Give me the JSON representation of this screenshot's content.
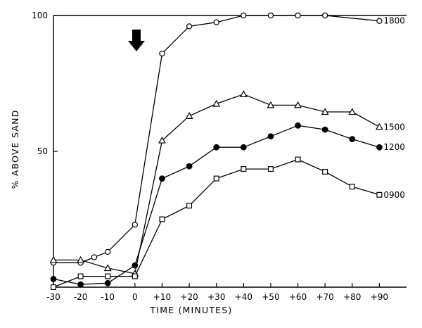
{
  "chart_data": {
    "type": "line",
    "xlabel": "TIME (MINUTES)",
    "ylabel": "% ABOVE SAND",
    "xlim": [
      -30,
      100
    ],
    "ylim": [
      0,
      100
    ],
    "x_ticks": [
      -30,
      -20,
      -10,
      0,
      10,
      20,
      30,
      40,
      50,
      60,
      70,
      80,
      90
    ],
    "x_tick_labels": [
      "-30",
      "-20",
      "-10",
      "0",
      "+10",
      "+20",
      "+30",
      "+40",
      "+50",
      "+60",
      "+70",
      "+80",
      "+90"
    ],
    "y_ticks": [
      50,
      100
    ],
    "y_tick_labels": [
      "50",
      "100"
    ],
    "grid": false,
    "annotation": {
      "type": "down-arrow",
      "x": 0
    },
    "series": [
      {
        "name": "1800",
        "marker": "open-circle",
        "points": [
          [
            -30,
            9
          ],
          [
            -20,
            9
          ],
          [
            -15,
            11
          ],
          [
            -10,
            13
          ],
          [
            0,
            23
          ],
          [
            10,
            86
          ],
          [
            20,
            96
          ],
          [
            30,
            97.5
          ],
          [
            40,
            100
          ],
          [
            50,
            100
          ],
          [
            60,
            100
          ],
          [
            70,
            100
          ],
          [
            90,
            98
          ]
        ]
      },
      {
        "name": "1500",
        "marker": "open-triangle",
        "points": [
          [
            -30,
            10
          ],
          [
            -20,
            10
          ],
          [
            -10,
            7
          ],
          [
            0,
            5
          ],
          [
            10,
            54
          ],
          [
            20,
            63
          ],
          [
            30,
            67.5
          ],
          [
            40,
            71
          ],
          [
            50,
            67
          ],
          [
            60,
            67
          ],
          [
            70,
            64.5
          ],
          [
            80,
            64.5
          ],
          [
            90,
            59
          ]
        ]
      },
      {
        "name": "1200",
        "marker": "filled-circle",
        "points": [
          [
            -30,
            3
          ],
          [
            -20,
            1
          ],
          [
            -10,
            1.5
          ],
          [
            0,
            8
          ],
          [
            10,
            40
          ],
          [
            20,
            44.5
          ],
          [
            30,
            51.5
          ],
          [
            40,
            51.5
          ],
          [
            50,
            55.5
          ],
          [
            60,
            59.5
          ],
          [
            70,
            58
          ],
          [
            80,
            54.5
          ],
          [
            90,
            51.5
          ]
        ]
      },
      {
        "name": "0900",
        "marker": "open-square",
        "points": [
          [
            -30,
            0
          ],
          [
            -20,
            4
          ],
          [
            -10,
            4
          ],
          [
            0,
            4
          ],
          [
            10,
            25
          ],
          [
            20,
            30
          ],
          [
            30,
            40
          ],
          [
            40,
            43.5
          ],
          [
            50,
            43.5
          ],
          [
            60,
            47
          ],
          [
            70,
            42.5
          ],
          [
            80,
            37
          ],
          [
            90,
            34
          ]
        ]
      }
    ]
  }
}
